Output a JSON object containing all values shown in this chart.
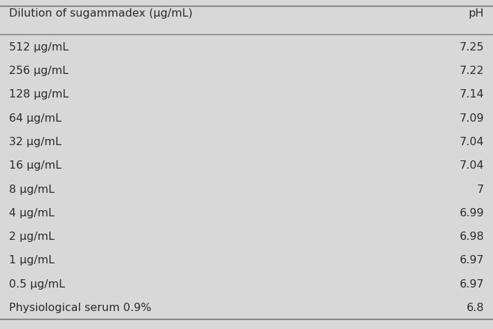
{
  "col_headers": [
    "Dilution of sugammadex (μg/mL)",
    "pH"
  ],
  "rows": [
    [
      "512 μg/mL",
      "7.25"
    ],
    [
      "256 μg/mL",
      "7.22"
    ],
    [
      "128 μg/mL",
      "7.14"
    ],
    [
      "64 μg/mL",
      "7.09"
    ],
    [
      "32 μg/mL",
      "7.04"
    ],
    [
      "16 μg/mL",
      "7.04"
    ],
    [
      "8 μg/mL",
      "7"
    ],
    [
      "4 μg/mL",
      "6.99"
    ],
    [
      "2 μg/mL",
      "6.98"
    ],
    [
      "1 μg/mL",
      "6.97"
    ],
    [
      "0.5 μg/mL",
      "6.97"
    ],
    [
      "Physiological serum 0.9%",
      "6.8"
    ]
  ],
  "background_color": "#d8d8d8",
  "header_text_color": "#2a2a2a",
  "row_text_color": "#2a2a2a",
  "line_color": "#888888",
  "header_fontsize": 11.5,
  "row_fontsize": 11.5,
  "figsize": [
    7.12,
    4.77
  ],
  "dpi": 100
}
